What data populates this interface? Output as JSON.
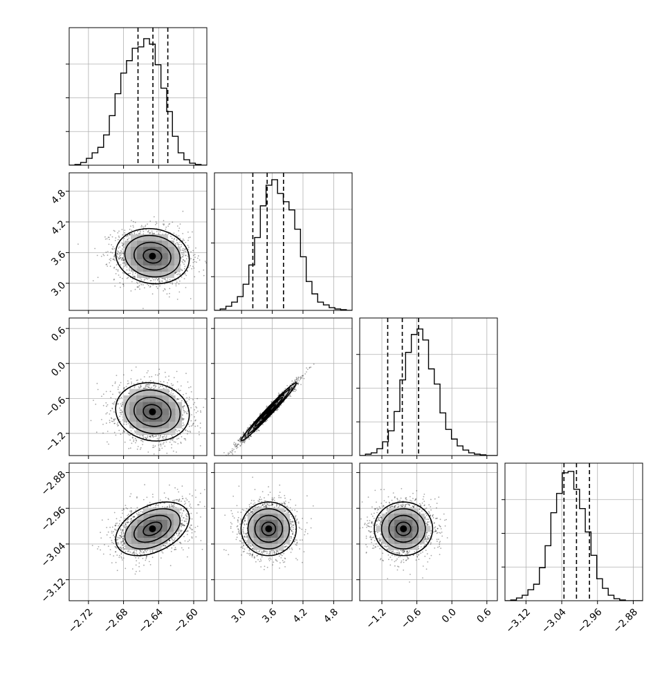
{
  "chart_data": {
    "type": "corner",
    "grid": true,
    "parameters": [
      {
        "ticks": [
          "−2.72",
          "−2.68",
          "−2.64",
          "−2.60"
        ],
        "tick_values": [
          -2.72,
          -2.68,
          -2.64,
          -2.6
        ],
        "range": [
          -2.742,
          -2.585
        ],
        "quantiles": [
          -2.6635,
          -2.6465,
          -2.6295
        ],
        "hist": [
          0.0,
          0.005,
          0.02,
          0.05,
          0.09,
          0.13,
          0.22,
          0.36,
          0.52,
          0.67,
          0.76,
          0.85,
          0.86,
          0.92,
          0.88,
          0.73,
          0.56,
          0.39,
          0.21,
          0.09,
          0.04,
          0.015,
          0.005,
          0.0
        ]
      },
      {
        "ticks": [
          "3.0",
          "3.6",
          "4.2",
          "4.8"
        ],
        "tick_values": [
          3.0,
          3.6,
          4.2,
          4.8
        ],
        "range": [
          2.47,
          5.16
        ],
        "quantiles": [
          3.22,
          3.5,
          3.82
        ],
        "hist": [
          0.0,
          0.01,
          0.03,
          0.06,
          0.1,
          0.19,
          0.33,
          0.53,
          0.76,
          0.91,
          0.95,
          0.85,
          0.79,
          0.73,
          0.59,
          0.39,
          0.21,
          0.12,
          0.06,
          0.04,
          0.02,
          0.01,
          0.005,
          0.0
        ]
      },
      {
        "ticks": [
          "−1.2",
          "−0.6",
          "0.0",
          "0.6"
        ],
        "tick_values": [
          -1.2,
          -0.6,
          0.0,
          0.6
        ],
        "range": [
          -1.58,
          0.78
        ],
        "quantiles": [
          -1.1,
          -0.85,
          -0.57
        ],
        "hist": [
          0.0,
          0.01,
          0.02,
          0.05,
          0.1,
          0.18,
          0.32,
          0.55,
          0.75,
          0.88,
          0.92,
          0.84,
          0.63,
          0.52,
          0.31,
          0.19,
          0.12,
          0.07,
          0.04,
          0.02,
          0.01,
          0.005,
          0.0,
          0.0
        ]
      },
      {
        "ticks": [
          "−3.12",
          "−3.04",
          "−2.96",
          "−2.88"
        ],
        "tick_values": [
          -3.12,
          -3.04,
          -2.96,
          -2.88
        ],
        "range": [
          -3.167,
          -2.859
        ],
        "quantiles": [
          -3.035,
          -3.007,
          -2.978
        ],
        "hist": [
          0.0,
          0.005,
          0.02,
          0.04,
          0.08,
          0.12,
          0.24,
          0.4,
          0.64,
          0.78,
          0.93,
          0.94,
          0.81,
          0.67,
          0.5,
          0.33,
          0.16,
          0.09,
          0.04,
          0.015,
          0.005,
          0.0,
          0.0,
          0.0
        ]
      }
    ],
    "pairs": [
      {
        "row": 1,
        "col": 0,
        "mean": [
          -2.647,
          3.53
        ],
        "sd": [
          0.021,
          0.27
        ],
        "corr": -0.1
      },
      {
        "row": 2,
        "col": 0,
        "mean": [
          -2.647,
          -0.83
        ],
        "sd": [
          0.021,
          0.25
        ],
        "corr": -0.1
      },
      {
        "row": 2,
        "col": 1,
        "mean": [
          3.53,
          -0.83
        ],
        "sd": [
          0.27,
          0.25
        ],
        "corr": 0.985
      },
      {
        "row": 3,
        "col": 0,
        "mean": [
          -2.647,
          -3.006
        ],
        "sd": [
          0.021,
          0.03
        ],
        "corr": 0.4
      },
      {
        "row": 3,
        "col": 1,
        "mean": [
          3.53,
          -3.006
        ],
        "sd": [
          0.27,
          0.03
        ],
        "corr": 0.0
      },
      {
        "row": 3,
        "col": 2,
        "mean": [
          -0.83,
          -3.006
        ],
        "sd": [
          0.25,
          0.03
        ],
        "corr": 0.0
      }
    ],
    "contour_levels_sigma": [
      0.5,
      1.0,
      1.5,
      2.0
    ]
  },
  "theme": {
    "line": "#000000",
    "grid": "#b0b0b0",
    "points": "#000000",
    "frame": "#000000"
  }
}
